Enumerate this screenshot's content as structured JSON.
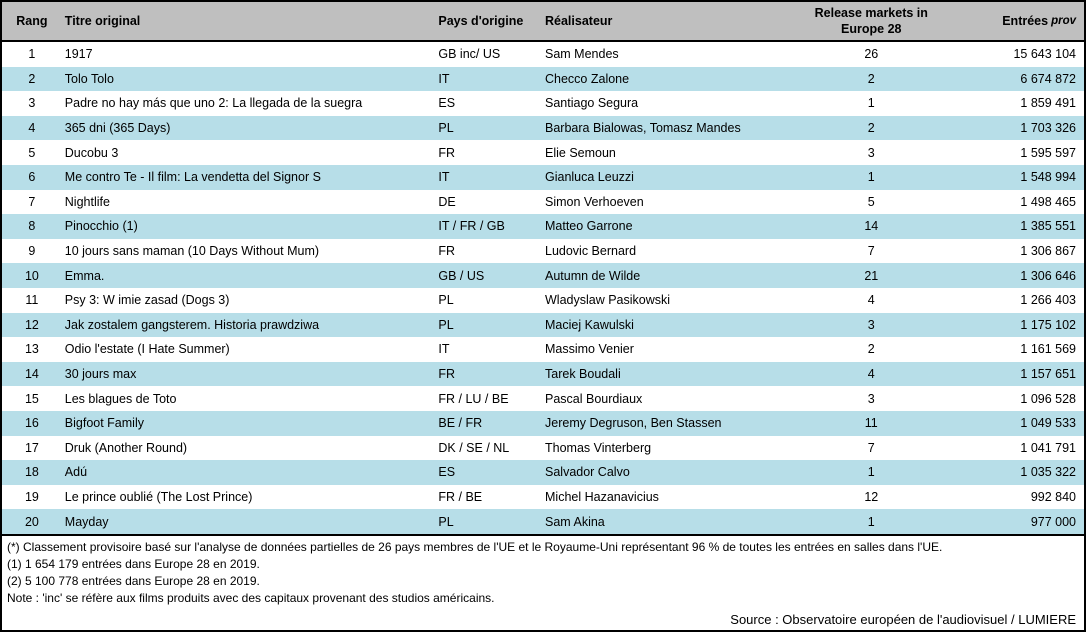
{
  "colors": {
    "header_bg": "#BFBFBF",
    "row_alt_bg": "#B7DEE8",
    "border": "#000000"
  },
  "table": {
    "columns": {
      "rank_label": "Rang",
      "title_label": "Titre original",
      "country_label": "Pays d'origine",
      "director_label": "Réalisateur",
      "markets_label_line1": "Release markets in",
      "markets_label_line2": "Europe 28",
      "entries_label": "Entrées",
      "entries_label_suffix": "prov"
    },
    "rows": [
      {
        "rank": "1",
        "title": "1917",
        "country": "GB inc/ US",
        "director": "Sam Mendes",
        "markets": "26",
        "entries": "15 643 104"
      },
      {
        "rank": "2",
        "title": "Tolo Tolo",
        "country": "IT",
        "director": "Checco Zalone",
        "markets": "2",
        "entries": "6 674 872"
      },
      {
        "rank": "3",
        "title": "Padre no hay más que uno 2: La llegada de la suegra",
        "country": "ES",
        "director": "Santiago Segura",
        "markets": "1",
        "entries": "1 859 491"
      },
      {
        "rank": "4",
        "title": "365 dni (365 Days)",
        "country": "PL",
        "director": "Barbara Bialowas, Tomasz Mandes",
        "markets": "2",
        "entries": "1 703 326"
      },
      {
        "rank": "5",
        "title": "Ducobu 3",
        "country": "FR",
        "director": "Elie Semoun",
        "markets": "3",
        "entries": "1 595 597"
      },
      {
        "rank": "6",
        "title": "Me contro Te - Il film: La vendetta del Signor S",
        "country": "IT",
        "director": "Gianluca Leuzzi",
        "markets": "1",
        "entries": "1 548 994"
      },
      {
        "rank": "7",
        "title": "Nightlife",
        "country": "DE",
        "director": "Simon Verhoeven",
        "markets": "5",
        "entries": "1 498 465"
      },
      {
        "rank": "8",
        "title": "Pinocchio (1)",
        "country": "IT / FR / GB",
        "director": "Matteo Garrone",
        "markets": "14",
        "entries": "1 385 551"
      },
      {
        "rank": "9",
        "title": "10 jours sans maman (10 Days Without Mum)",
        "country": "FR",
        "director": "Ludovic Bernard",
        "markets": "7",
        "entries": "1 306 867"
      },
      {
        "rank": "10",
        "title": "Emma.",
        "country": "GB / US",
        "director": "Autumn de Wilde",
        "markets": "21",
        "entries": "1 306 646"
      },
      {
        "rank": "11",
        "title": "Psy 3: W imie zasad (Dogs 3)",
        "country": "PL",
        "director": "Wladyslaw Pasikowski",
        "markets": "4",
        "entries": "1 266 403"
      },
      {
        "rank": "12",
        "title": "Jak zostalem gangsterem. Historia prawdziwa",
        "country": "PL",
        "director": "Maciej Kawulski",
        "markets": "3",
        "entries": "1 175 102"
      },
      {
        "rank": "13",
        "title": "Odio l'estate (I Hate Summer)",
        "country": "IT",
        "director": "Massimo Venier",
        "markets": "2",
        "entries": "1 161 569"
      },
      {
        "rank": "14",
        "title": "30 jours max",
        "country": "FR",
        "director": "Tarek Boudali",
        "markets": "4",
        "entries": "1 157 651"
      },
      {
        "rank": "15",
        "title": "Les blagues de Toto",
        "country": "FR / LU / BE",
        "director": "Pascal Bourdiaux",
        "markets": "3",
        "entries": "1 096 528"
      },
      {
        "rank": "16",
        "title": "Bigfoot Family",
        "country": "BE / FR",
        "director": "Jeremy Degruson, Ben Stassen",
        "markets": "11",
        "entries": "1 049 533"
      },
      {
        "rank": "17",
        "title": "Druk (Another Round)",
        "country": "DK / SE / NL",
        "director": "Thomas Vinterberg",
        "markets": "7",
        "entries": "1 041 791"
      },
      {
        "rank": "18",
        "title": "Adú",
        "country": "ES",
        "director": "Salvador Calvo",
        "markets": "1",
        "entries": "1 035 322"
      },
      {
        "rank": "19",
        "title": "Le prince oublié (The Lost Prince)",
        "country": "FR / BE",
        "director": "Michel Hazanavicius",
        "markets": "12",
        "entries": "992 840"
      },
      {
        "rank": "20",
        "title": "Mayday",
        "country": "PL",
        "director": "Sam Akina",
        "markets": "1",
        "entries": "977 000"
      }
    ]
  },
  "footnotes": [
    "(*)  Classement provisoire basé sur l'analyse de données partielles de 26 pays membres de l'UE et le Royaume-Uni  représentant 96 % de toutes les entrées en salles dans l'UE.",
    "(1) 1 654 179  entrées dans Europe 28 en 2019.",
    "(2) 5 100 778 entrées dans Europe 28 en 2019.",
    "Note : 'inc' se réfère aux films produits avec des capitaux provenant des studios américains."
  ],
  "source": "Source : Observatoire européen de l'audiovisuel / LUMIERE"
}
